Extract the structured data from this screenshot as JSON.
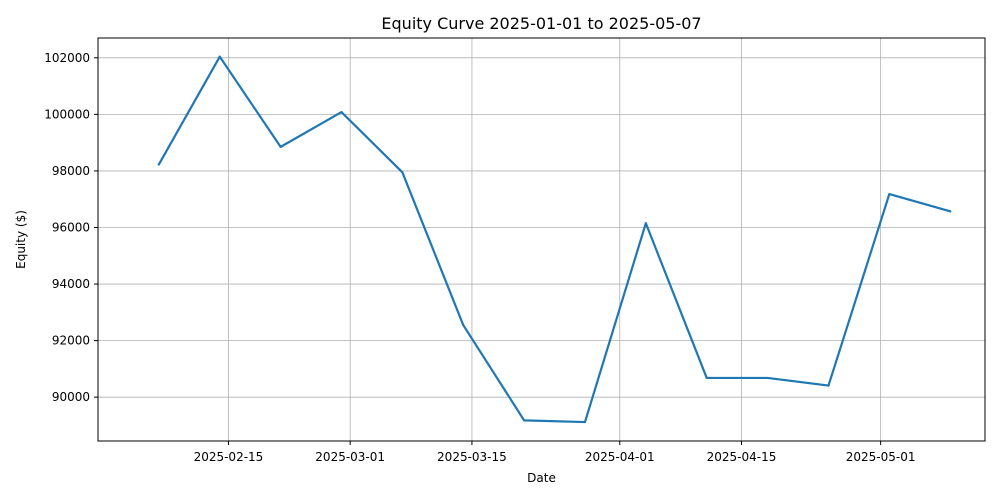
{
  "chart_data": {
    "type": "line",
    "title": "Equity Curve 2025-01-01 to 2025-05-07",
    "xlabel": "Date",
    "ylabel": "Equity ($)",
    "x_type": "date",
    "xlim": [
      "2025-01-31",
      "2025-05-13"
    ],
    "ylim": [
      88450,
      102700
    ],
    "x_ticks": [
      "2025-02-15",
      "2025-03-01",
      "2025-03-15",
      "2025-04-01",
      "2025-04-15",
      "2025-05-01"
    ],
    "y_ticks": [
      90000,
      92000,
      94000,
      96000,
      98000,
      100000,
      102000
    ],
    "grid": true,
    "legend": "none",
    "series": [
      {
        "color": "#1f77b4",
        "x": [
          "2025-02-07",
          "2025-02-14",
          "2025-02-21",
          "2025-02-28",
          "2025-03-07",
          "2025-03-14",
          "2025-03-21",
          "2025-03-28",
          "2025-04-04",
          "2025-04-11",
          "2025-04-18",
          "2025-04-25",
          "2025-05-02",
          "2025-05-09"
        ],
        "values": [
          98230,
          102040,
          98850,
          100080,
          97950,
          92550,
          89180,
          89120,
          96150,
          90680,
          90680,
          90410,
          97180,
          96570
        ]
      }
    ]
  }
}
